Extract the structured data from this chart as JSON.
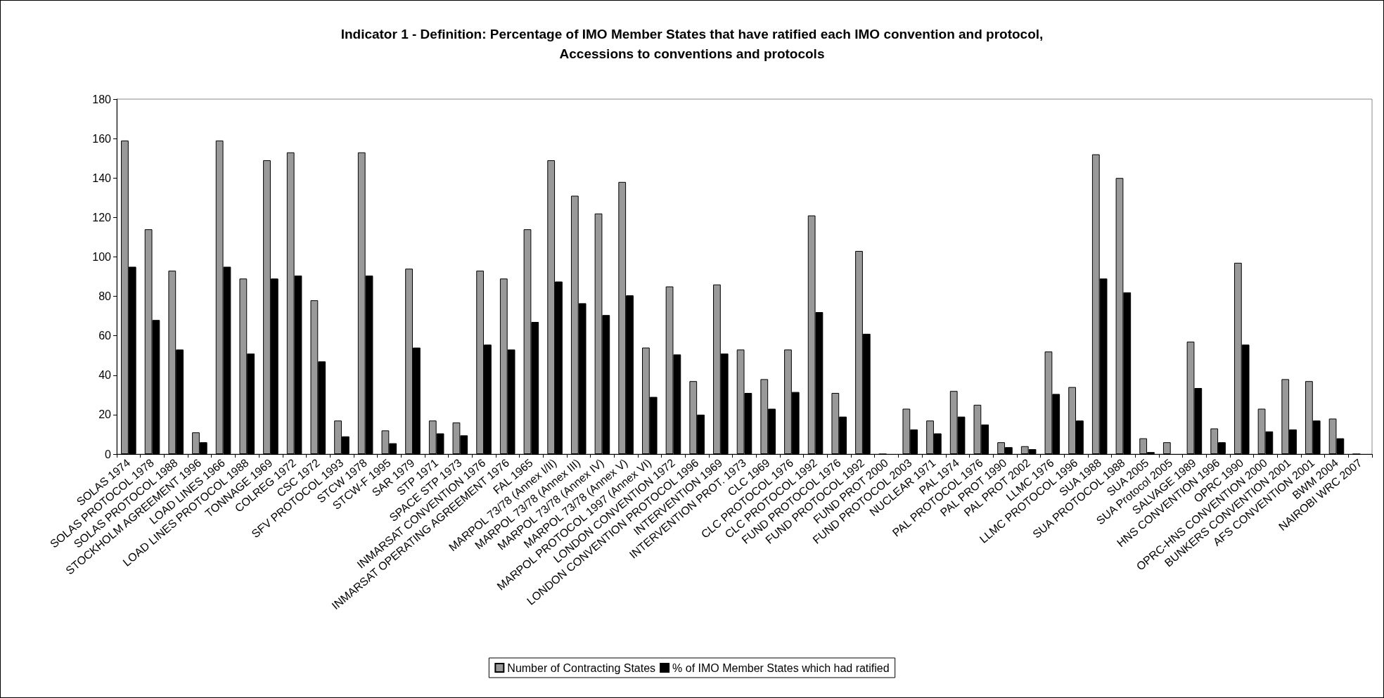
{
  "chart_data": {
    "type": "bar",
    "title": "Indicator 1 - Definition: Percentage of IMO Member States that have ratified each IMO convention and protocol,\nAccessions to conventions and protocols",
    "categories": [
      "SOLAS 1974",
      "SOLAS PROTOCOL 1978",
      "SOLAS PROTOCOL 1988",
      "STOCKHOLM AGREEMENT 1996",
      "LOAD LINES 1966",
      "LOAD LINES PROTOCOL 1988",
      "TONNAGE 1969",
      "COLREG 1972",
      "CSC 1972",
      "SFV PROTOCOL 1993",
      "STCW 1978",
      "STCW-F 1995",
      "SAR 1979",
      "STP 1971",
      "SPACE STP 1973",
      "INMARSAT CONVENTION 1976",
      "INMARSAT OPERATING AGREEMENT 1976",
      "FAL 1965",
      "MARPOL 73/78 (Annex I/II)",
      "MARPOL 73/78 (Annex III)",
      "MARPOL 73/78 (Annex IV)",
      "MARPOL 73/78 (Annex V)",
      "MARPOL PROTOCOL 1997 (Annex VI)",
      "LONDON CONVENTION 1972",
      "LONDON CONVENTION PROTOCOL 1996",
      "INTERVENTION 1969",
      "INTERVENTION PROT. 1973",
      "CLC 1969",
      "CLC PROTOCOL 1976",
      "CLC PROTOCOL 1992",
      "FUND PROTOCOL 1976",
      "FUND PROTOCOL 1992",
      "FUND PROT 2000",
      "FUND PROTOCOL 2003",
      "NUCLEAR 1971",
      "PAL 1974",
      "PAL PROTOCOL 1976",
      "PAL PROT 1990",
      "PAL PROT 2002",
      "LLMC 1976",
      "LLMC PROTOCOL 1996",
      "SUA 1988",
      "SUA PROTOCOL 1988",
      "SUA 2005",
      "SUA Protocol 2005",
      "SALVAGE 1989",
      "HNS CONVENTION 1996",
      "OPRC 1990",
      "OPRC-HNS CONVENTION 2000",
      "BUNKERS CONVENTION 2001",
      "AFS CONVENTION 2001",
      "BWM 2004",
      "NAIROBI WRC 2007"
    ],
    "series": [
      {
        "name": "Number of Contracting States",
        "color": "#999999",
        "values": [
          159,
          114,
          93,
          11,
          159,
          89,
          149,
          153,
          78,
          17,
          153,
          12,
          94,
          17,
          16,
          93,
          89,
          114,
          149,
          131,
          122,
          138,
          54,
          85,
          37,
          86,
          53,
          38,
          53,
          121,
          31,
          103,
          0,
          23,
          17,
          32,
          25,
          6,
          4,
          52,
          34,
          152,
          140,
          8,
          6,
          57,
          13,
          97,
          23,
          38,
          37,
          18,
          0
        ]
      },
      {
        "name": "% of IMO Member States which had ratified",
        "color": "#000000",
        "values": [
          95,
          68,
          53,
          6,
          95,
          51,
          89,
          90.5,
          47,
          9,
          90.5,
          5.5,
          54,
          10.5,
          9.5,
          55.5,
          53,
          67,
          87.5,
          76.5,
          70.5,
          80.5,
          29,
          50.5,
          20,
          51,
          31,
          23,
          31.5,
          72,
          19,
          61,
          null,
          12.5,
          10.5,
          19,
          15,
          3.5,
          2.5,
          30.5,
          17,
          89,
          82,
          1,
          null,
          33.5,
          6,
          55.5,
          11.5,
          12.5,
          17,
          8,
          null
        ]
      }
    ],
    "ylim": [
      0,
      180
    ],
    "yticks": [
      0,
      20,
      40,
      60,
      80,
      100,
      120,
      140,
      160,
      180
    ],
    "grid": false,
    "legend": "bottom"
  }
}
